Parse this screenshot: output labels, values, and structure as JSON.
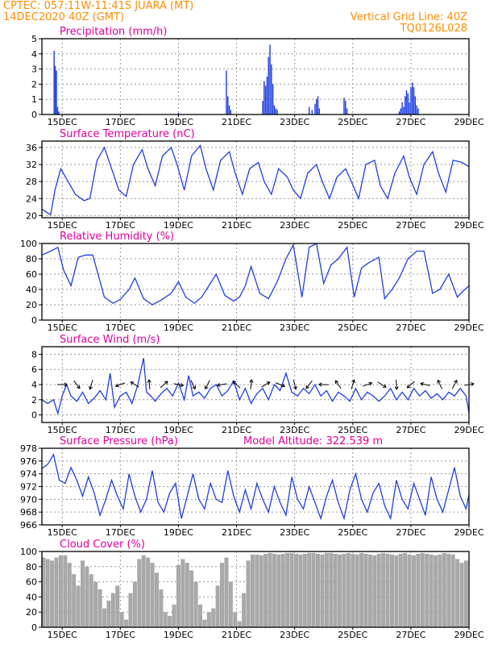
{
  "header": {
    "line1": "CPTEC:   057:11W-11:41S   JUARA (MT)",
    "line2": "14DEC2020 40Z (GMT)",
    "grid_note": "Vertical Grid Line: 40Z",
    "code": "TQ0126L028"
  },
  "colors": {
    "title": "#e0009a",
    "header": "#ff8c00",
    "line": "#1f3fe0",
    "bar": "#1f3fe0",
    "cloud": "#a9a9a9",
    "grid": "#9a9a9a",
    "arrow": "#000000"
  },
  "x_ticks": [
    "15DEC",
    "17DEC",
    "19DEC",
    "21DEC",
    "23DEC",
    "25DEC",
    "27DEC",
    "29DEC"
  ],
  "chart_data": [
    {
      "type": "bar",
      "title": "Precipitation (mm/h)",
      "ylim": [
        0,
        5
      ],
      "yticks": [
        "0",
        "1",
        "2",
        "3",
        "4",
        "5"
      ],
      "x_unit": "days since 14DEC 00Z",
      "xlim": [
        0.3,
        15
      ],
      "bar_width_days": 0.04,
      "series": [
        {
          "x": [
            0.72,
            0.76,
            0.8,
            0.84,
            0.88,
            3.6,
            5.0,
            6.65,
            6.7,
            6.75,
            6.8,
            7.9,
            7.95,
            8.0,
            8.05,
            8.1,
            8.15,
            8.2,
            8.25,
            8.3,
            8.35,
            8.4,
            9.5,
            9.6,
            9.7,
            9.75,
            9.8,
            9.85,
            10.7,
            10.75,
            10.8,
            12.6,
            12.65,
            12.7,
            12.75,
            12.8,
            12.85,
            12.9,
            12.95,
            13.0,
            13.05,
            13.1,
            13.15,
            13.2,
            13.25
          ],
          "values": [
            4.2,
            3.2,
            2.9,
            0.5,
            0.2,
            0.05,
            0.1,
            2.9,
            1.2,
            0.6,
            0.3,
            0.9,
            2.2,
            1.9,
            2.5,
            3.8,
            4.6,
            3.3,
            2.0,
            0.6,
            0.4,
            0.3,
            0.5,
            0.3,
            0.7,
            1.0,
            1.2,
            0.4,
            1.1,
            0.9,
            0.4,
            0.2,
            0.4,
            0.8,
            0.5,
            1.2,
            1.6,
            1.4,
            0.8,
            1.8,
            2.1,
            1.8,
            1.2,
            0.6,
            0.4
          ]
        }
      ]
    },
    {
      "type": "line",
      "title": "Surface Temperature (nC)",
      "ylim": [
        19.5,
        37.5
      ],
      "yticks": [
        "20",
        "24",
        "28",
        "32",
        "36"
      ],
      "x_unit": "days since 14DEC 00Z",
      "xlim": [
        0.3,
        15
      ],
      "series": [
        {
          "x": [
            0.3,
            0.6,
            0.75,
            0.95,
            1.2,
            1.45,
            1.75,
            1.95,
            2.2,
            2.45,
            2.75,
            2.95,
            3.2,
            3.45,
            3.75,
            3.95,
            4.2,
            4.45,
            4.75,
            4.95,
            5.2,
            5.45,
            5.75,
            5.95,
            6.2,
            6.45,
            6.75,
            6.95,
            7.2,
            7.45,
            7.75,
            7.95,
            8.2,
            8.45,
            8.75,
            8.95,
            9.2,
            9.45,
            9.75,
            9.95,
            10.2,
            10.45,
            10.75,
            10.95,
            11.2,
            11.45,
            11.75,
            11.95,
            12.2,
            12.45,
            12.75,
            12.95,
            13.2,
            13.45,
            13.75,
            13.95,
            14.2,
            14.45,
            14.75,
            15.0
          ],
          "values": [
            21.5,
            20.2,
            26,
            31,
            28,
            25,
            23.5,
            24,
            33,
            36,
            30,
            26,
            24.5,
            32,
            35.5,
            31,
            27,
            34,
            36,
            32,
            26,
            34,
            36.5,
            31,
            26,
            33,
            35,
            30,
            25,
            31,
            32.5,
            28,
            25,
            31,
            29,
            26,
            24,
            30,
            32,
            28,
            24,
            29,
            31,
            28,
            24,
            32,
            33,
            27,
            24,
            30,
            34,
            29,
            25,
            32,
            35,
            30,
            25.5,
            33,
            32.5,
            31.5
          ]
        }
      ]
    },
    {
      "type": "line",
      "title": "Relative Humidity (%)",
      "ylim": [
        0,
        100
      ],
      "yticks": [
        "0",
        "20",
        "40",
        "60",
        "80",
        "100"
      ],
      "x_unit": "days since 14DEC 00Z",
      "xlim": [
        0.3,
        15
      ],
      "series": [
        {
          "x": [
            0.3,
            0.6,
            0.85,
            1.05,
            1.3,
            1.55,
            1.8,
            2.05,
            2.45,
            2.75,
            3.0,
            3.3,
            3.5,
            3.8,
            4.1,
            4.4,
            4.75,
            5.0,
            5.25,
            5.55,
            5.8,
            6.0,
            6.3,
            6.6,
            6.9,
            7.1,
            7.3,
            7.5,
            7.8,
            8.1,
            8.4,
            8.7,
            8.95,
            9.25,
            9.5,
            9.75,
            10.0,
            10.25,
            10.5,
            10.8,
            11.05,
            11.3,
            11.55,
            11.9,
            12.1,
            12.35,
            12.6,
            12.9,
            13.2,
            13.45,
            13.75,
            14.0,
            14.3,
            14.6,
            14.8,
            15.0
          ],
          "values": [
            85,
            90,
            95,
            65,
            45,
            82,
            85,
            85,
            30,
            22,
            27,
            40,
            55,
            28,
            20,
            26,
            35,
            50,
            30,
            22,
            30,
            42,
            60,
            32,
            25,
            30,
            45,
            70,
            35,
            28,
            50,
            80,
            98,
            30,
            95,
            100,
            48,
            72,
            80,
            95,
            30,
            68,
            75,
            82,
            28,
            40,
            55,
            80,
            90,
            90,
            35,
            40,
            60,
            30,
            38,
            45
          ]
        }
      ]
    },
    {
      "type": "line",
      "title": "Surface Wind (m/s)",
      "ylim": [
        -1,
        9
      ],
      "yticks": [
        "0",
        "2",
        "4",
        "6",
        "8"
      ],
      "x_unit": "days since 14DEC 00Z",
      "xlim": [
        0.3,
        15
      ],
      "series": [
        {
          "x": [
            0.3,
            0.5,
            0.7,
            0.85,
            1.0,
            1.15,
            1.3,
            1.5,
            1.7,
            1.9,
            2.1,
            2.3,
            2.5,
            2.65,
            2.8,
            3.0,
            3.2,
            3.4,
            3.6,
            3.8,
            3.9,
            4.05,
            4.2,
            4.4,
            4.6,
            4.8,
            5.0,
            5.2,
            5.35,
            5.5,
            5.7,
            5.9,
            6.1,
            6.3,
            6.5,
            6.7,
            6.9,
            7.1,
            7.3,
            7.5,
            7.7,
            7.9,
            8.1,
            8.3,
            8.5,
            8.7,
            8.9,
            9.1,
            9.3,
            9.5,
            9.7,
            9.9,
            10.1,
            10.3,
            10.5,
            10.7,
            10.9,
            11.1,
            11.3,
            11.5,
            11.7,
            11.9,
            12.1,
            12.3,
            12.5,
            12.7,
            12.9,
            13.1,
            13.3,
            13.5,
            13.7,
            13.9,
            14.1,
            14.3,
            14.5,
            14.7,
            14.9,
            15.0
          ],
          "values": [
            2.0,
            1.5,
            2.0,
            0.2,
            2.5,
            4.0,
            2.5,
            1.8,
            3.0,
            1.5,
            2.2,
            3.2,
            2.0,
            5.5,
            1.0,
            2.5,
            3.0,
            1.5,
            4.0,
            7.5,
            3.0,
            2.5,
            1.8,
            2.8,
            3.5,
            2.5,
            4.2,
            2.0,
            5.2,
            2.5,
            3.0,
            2.2,
            3.5,
            4.0,
            2.5,
            3.2,
            4.5,
            2.0,
            3.5,
            1.5,
            2.8,
            3.5,
            2.0,
            4.0,
            3.2,
            5.5,
            3.0,
            2.5,
            3.5,
            2.8,
            4.0,
            2.5,
            3.2,
            1.8,
            3.0,
            2.5,
            1.8,
            3.5,
            2.0,
            3.0,
            2.5,
            1.8,
            2.5,
            3.5,
            2.0,
            3.0,
            2.0,
            3.5,
            2.5,
            3.2,
            2.2,
            2.8,
            2.0,
            3.0,
            2.5,
            3.5,
            2.5,
            0.2
          ]
        }
      ],
      "arrows": {
        "y": 4,
        "x": [
          1.0,
          1.5,
          2.0,
          3.0,
          3.5,
          4.0,
          4.5,
          5.0,
          5.5,
          6.0,
          6.5,
          7.0,
          7.5,
          8.0,
          8.5,
          9.0,
          9.5,
          10.0,
          10.5,
          11.0,
          11.5,
          12.0,
          12.5,
          13.0,
          13.5,
          14.0,
          14.5,
          15.0
        ]
      }
    },
    {
      "type": "line",
      "title": "Surface Pressure (hPa)",
      "annotation": "Model Altitude: 322.539  m",
      "ylim": [
        966,
        978
      ],
      "yticks": [
        "966",
        "968",
        "970",
        "972",
        "974",
        "976",
        "978"
      ],
      "x_unit": "days since 14DEC 00Z",
      "xlim": [
        0.3,
        15
      ],
      "series": [
        {
          "x": [
            0.3,
            0.5,
            0.7,
            0.9,
            1.1,
            1.3,
            1.5,
            1.7,
            1.9,
            2.1,
            2.3,
            2.5,
            2.7,
            2.9,
            3.1,
            3.3,
            3.5,
            3.7,
            3.9,
            4.1,
            4.3,
            4.5,
            4.7,
            4.9,
            5.1,
            5.3,
            5.5,
            5.7,
            5.9,
            6.1,
            6.3,
            6.5,
            6.7,
            6.9,
            7.1,
            7.3,
            7.5,
            7.7,
            7.9,
            8.1,
            8.3,
            8.5,
            8.7,
            8.9,
            9.1,
            9.3,
            9.5,
            9.7,
            9.9,
            10.1,
            10.3,
            10.5,
            10.7,
            10.9,
            11.1,
            11.3,
            11.5,
            11.7,
            11.9,
            12.1,
            12.3,
            12.5,
            12.7,
            12.9,
            13.1,
            13.3,
            13.5,
            13.7,
            13.9,
            14.1,
            14.3,
            14.5,
            14.7,
            14.9,
            15.0
          ],
          "values": [
            974.8,
            975.5,
            977.0,
            973.0,
            972.5,
            975.0,
            973.0,
            970.5,
            973.5,
            971.0,
            967.5,
            970.0,
            973.0,
            970.5,
            968.5,
            974.0,
            970.5,
            968.0,
            970.0,
            974.5,
            969.5,
            968.0,
            971.0,
            972.5,
            967.0,
            970.5,
            974.0,
            970.0,
            968.5,
            972.5,
            970.0,
            969.5,
            974.5,
            970.5,
            968.0,
            971.5,
            968.5,
            972.5,
            970.0,
            968.0,
            972.0,
            969.5,
            967.5,
            973.5,
            970.0,
            968.5,
            972.0,
            969.5,
            967.0,
            970.5,
            973.0,
            969.5,
            967.0,
            971.5,
            974.0,
            970.0,
            968.0,
            971.0,
            972.5,
            969.0,
            967.0,
            973.0,
            970.0,
            968.5,
            972.5,
            970.0,
            967.5,
            973.5,
            970.0,
            968.0,
            971.5,
            975.0,
            970.5,
            968.5,
            970.8
          ]
        }
      ]
    },
    {
      "type": "bar",
      "title": "Cloud Cover (%)",
      "ylim": [
        0,
        100
      ],
      "yticks": [
        "0",
        "20",
        "40",
        "60",
        "80",
        "100"
      ],
      "x_unit": "days since 14DEC 00Z",
      "xlim": [
        0.3,
        15
      ],
      "bar_width_days": 0.14,
      "series": [
        {
          "x": [
            0.35,
            0.5,
            0.65,
            0.8,
            0.95,
            1.1,
            1.25,
            1.4,
            1.55,
            1.7,
            1.85,
            2.0,
            2.15,
            2.3,
            2.45,
            2.6,
            2.75,
            2.9,
            3.05,
            3.2,
            3.35,
            3.5,
            3.65,
            3.8,
            3.95,
            4.1,
            4.25,
            4.4,
            4.55,
            4.7,
            4.85,
            5.0,
            5.15,
            5.3,
            5.45,
            5.6,
            5.75,
            5.9,
            6.05,
            6.2,
            6.35,
            6.5,
            6.65,
            6.8,
            6.95,
            7.1,
            7.25,
            7.4,
            7.55,
            7.7,
            7.85,
            8.0,
            8.15,
            8.3,
            8.45,
            8.6,
            8.75,
            8.9,
            9.05,
            9.2,
            9.35,
            9.5,
            9.65,
            9.8,
            9.95,
            10.1,
            10.25,
            10.4,
            10.55,
            10.7,
            10.85,
            11.0,
            11.15,
            11.3,
            11.45,
            11.6,
            11.75,
            11.9,
            12.05,
            12.2,
            12.35,
            12.5,
            12.65,
            12.8,
            12.95,
            13.1,
            13.25,
            13.4,
            13.55,
            13.7,
            13.85,
            14.0,
            14.15,
            14.3,
            14.45,
            14.6,
            14.75,
            14.9
          ],
          "values": [
            92,
            90,
            88,
            92,
            95,
            95,
            85,
            70,
            55,
            88,
            80,
            70,
            60,
            50,
            25,
            35,
            45,
            55,
            20,
            10,
            45,
            60,
            90,
            95,
            92,
            85,
            72,
            50,
            20,
            15,
            30,
            82,
            90,
            85,
            75,
            60,
            30,
            10,
            20,
            25,
            55,
            85,
            92,
            60,
            20,
            8,
            45,
            88,
            96,
            96,
            95,
            97,
            98,
            97,
            96,
            97,
            98,
            98,
            97,
            96,
            97,
            98,
            98,
            97,
            96,
            98,
            98,
            97,
            96,
            97,
            98,
            97,
            96,
            98,
            97,
            96,
            95,
            97,
            98,
            97,
            96,
            95,
            97,
            98,
            96,
            95,
            97,
            98,
            97,
            96,
            95,
            96,
            98,
            97,
            96,
            90,
            85,
            88
          ]
        }
      ]
    }
  ]
}
